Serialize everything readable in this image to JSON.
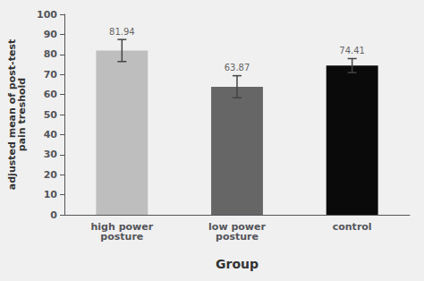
{
  "chart_data": {
    "type": "bar",
    "categories": [
      "high power\nposture",
      "low power\nposture",
      "control"
    ],
    "values": [
      81.94,
      63.87,
      74.41
    ],
    "errors": [
      5.5,
      5.5,
      3.5
    ],
    "colors": [
      "#bebebe",
      "#666666",
      "#0a0a0a"
    ],
    "ylabel": "adjusted mean of post-test\npain treshold",
    "xlabel": "Group",
    "ylim": [
      0,
      100
    ],
    "yticks": [
      0,
      10,
      20,
      30,
      40,
      50,
      60,
      70,
      80,
      90,
      100
    ],
    "data_labels": true,
    "grid": false
  }
}
